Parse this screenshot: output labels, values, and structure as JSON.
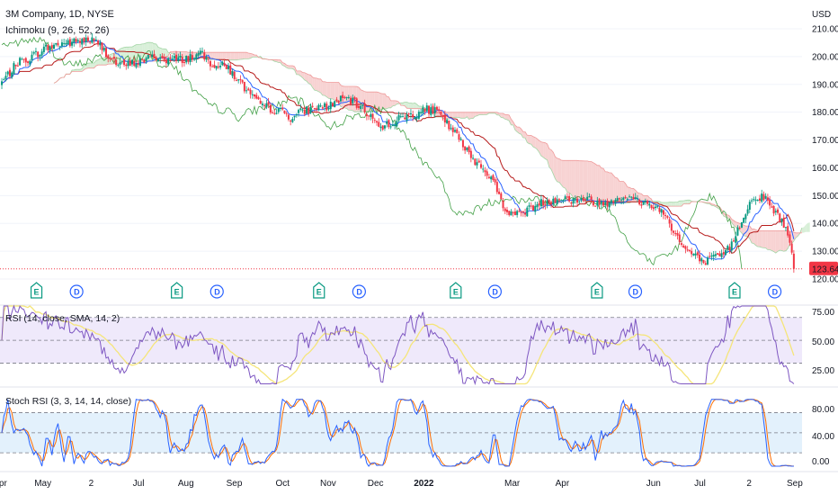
{
  "header": {
    "symbol_title": "3M Company, 1D, NYSE",
    "ichimoku_label": "Ichimoku (9, 26, 52, 26)",
    "currency": "USD"
  },
  "last_price": {
    "value": 123.64,
    "label": "123.64",
    "color": "#f23645"
  },
  "colors": {
    "up": "#089981",
    "down": "#f23645",
    "tenkan": "#2962ff",
    "kijun": "#b71c1c",
    "chikou": "#43a047",
    "cloud_bull": "#d8efd8",
    "cloud_bear": "#f7d2d2",
    "rsi_line": "#7e57c2",
    "rsi_ma": "#f5e57a",
    "rsi_band": "#efe9fb",
    "stoch_k": "#2962ff",
    "stoch_d": "#ff6d00",
    "stoch_band": "#e3f1fc"
  },
  "x_axis": {
    "labels": [
      {
        "t": 0,
        "label": "Apr"
      },
      {
        "t": 47,
        "label": "May"
      },
      {
        "t": 100,
        "label": "2"
      },
      {
        "t": 152,
        "label": "Jul"
      },
      {
        "t": 204,
        "label": "Aug"
      },
      {
        "t": 257,
        "label": "Sep"
      },
      {
        "t": 310,
        "label": "Oct"
      },
      {
        "t": 360,
        "label": "Nov"
      },
      {
        "t": 412,
        "label": "Dec"
      },
      {
        "t": 465,
        "label": "2022"
      },
      {
        "t": 562,
        "label": "Mar"
      },
      {
        "t": 617,
        "label": "Apr"
      },
      {
        "t": 717,
        "label": "Jun"
      },
      {
        "t": 768,
        "label": "Jul"
      },
      {
        "t": 822,
        "label": "2"
      },
      {
        "t": 872,
        "label": "Sep"
      }
    ]
  },
  "events": [
    {
      "t": 40,
      "type": "E"
    },
    {
      "t": 84,
      "type": "D"
    },
    {
      "t": 194,
      "type": "E"
    },
    {
      "t": 238,
      "type": "D"
    },
    {
      "t": 350,
      "type": "E"
    },
    {
      "t": 394,
      "type": "D"
    },
    {
      "t": 500,
      "type": "E"
    },
    {
      "t": 543,
      "type": "D"
    },
    {
      "t": 655,
      "type": "E"
    },
    {
      "t": 697,
      "type": "D"
    },
    {
      "t": 806,
      "type": "E"
    },
    {
      "t": 850,
      "type": "D"
    }
  ],
  "rsi": {
    "title": "RSI (14, close, SMA, 14, 2)",
    "ticks": [
      "75.00",
      "50.00",
      "25.00"
    ],
    "upper": 70,
    "lower": 30
  },
  "stoch": {
    "title": "Stoch RSI (3, 3, 14, 14, close)",
    "ticks": [
      "80.00",
      "40.00",
      "0.00"
    ],
    "upper": 80,
    "lower": 20
  },
  "chart_data": {
    "type": "candlestick",
    "title": "3M Company, 1D, NYSE",
    "y_ticks": [
      210,
      200,
      190,
      180,
      170,
      160,
      150,
      140,
      130,
      120
    ],
    "ylim": [
      118,
      212
    ],
    "close_path": [
      [
        0,
        190
      ],
      [
        10,
        194
      ],
      [
        20,
        198
      ],
      [
        30,
        199
      ],
      [
        40,
        201
      ],
      [
        50,
        203
      ],
      [
        60,
        204
      ],
      [
        70,
        205
      ],
      [
        80,
        205
      ],
      [
        90,
        206
      ],
      [
        100,
        206
      ],
      [
        110,
        204
      ],
      [
        120,
        200
      ],
      [
        130,
        197
      ],
      [
        140,
        197
      ],
      [
        150,
        198
      ],
      [
        160,
        199
      ],
      [
        170,
        200
      ],
      [
        180,
        199
      ],
      [
        190,
        199
      ],
      [
        200,
        199
      ],
      [
        210,
        200
      ],
      [
        220,
        201
      ],
      [
        230,
        198
      ],
      [
        240,
        197
      ],
      [
        250,
        196
      ],
      [
        260,
        192
      ],
      [
        270,
        188
      ],
      [
        280,
        184
      ],
      [
        290,
        182
      ],
      [
        300,
        181
      ],
      [
        310,
        180
      ],
      [
        320,
        178
      ],
      [
        330,
        180
      ],
      [
        340,
        181
      ],
      [
        350,
        182
      ],
      [
        360,
        182
      ],
      [
        370,
        184
      ],
      [
        380,
        185
      ],
      [
        390,
        183
      ],
      [
        400,
        181
      ],
      [
        410,
        177
      ],
      [
        420,
        175
      ],
      [
        430,
        176
      ],
      [
        440,
        178
      ],
      [
        450,
        179
      ],
      [
        460,
        180
      ],
      [
        470,
        181
      ],
      [
        480,
        180
      ],
      [
        490,
        176
      ],
      [
        500,
        172
      ],
      [
        510,
        167
      ],
      [
        520,
        163
      ],
      [
        530,
        160
      ],
      [
        540,
        156
      ],
      [
        550,
        148
      ],
      [
        560,
        143
      ],
      [
        570,
        144
      ],
      [
        580,
        145
      ],
      [
        590,
        147
      ],
      [
        600,
        148
      ],
      [
        610,
        149
      ],
      [
        620,
        149
      ],
      [
        630,
        148
      ],
      [
        640,
        149
      ],
      [
        650,
        148
      ],
      [
        660,
        147
      ],
      [
        670,
        148
      ],
      [
        680,
        150
      ],
      [
        690,
        149
      ],
      [
        700,
        148
      ],
      [
        710,
        147
      ],
      [
        720,
        146
      ],
      [
        730,
        143
      ],
      [
        740,
        137
      ],
      [
        750,
        131
      ],
      [
        760,
        129
      ],
      [
        770,
        126
      ],
      [
        780,
        127
      ],
      [
        790,
        128
      ],
      [
        800,
        131
      ],
      [
        810,
        138
      ],
      [
        820,
        146
      ],
      [
        830,
        150
      ],
      [
        840,
        149
      ],
      [
        850,
        144
      ],
      [
        860,
        140
      ],
      [
        865,
        135
      ],
      [
        872,
        123.64
      ]
    ]
  }
}
